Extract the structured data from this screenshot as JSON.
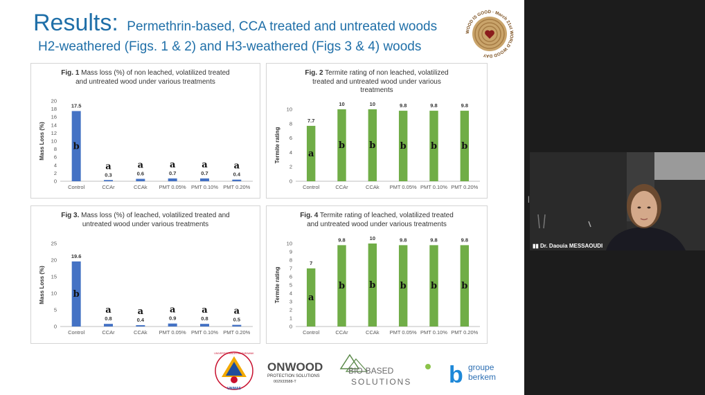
{
  "slide": {
    "title_big": "Results:",
    "title_sub1": "Permethrin-based, CCA treated and untreated woods",
    "title_sub2": "H2-weathered (Figs. 1 & 2) and H3-weathered (Figs 3 & 4) woods",
    "badge_text": "WOOD IS GOOD · March 21st WORLD WOOD DAY"
  },
  "chart_data": [
    {
      "type": "bar",
      "id": "fig1",
      "title_bold": "Fig. 1",
      "title_rest": " Mass loss (%) of non leached, volatilized treated",
      "title_line2": "and untreated wood under various treatments",
      "categories": [
        "Control",
        "CCAr",
        "CCAk",
        "PMT 0.05%",
        "PMT 0.10%",
        "PMT 0.20%"
      ],
      "values": [
        17.5,
        0.3,
        0.6,
        0.7,
        0.7,
        0.4
      ],
      "value_labels": [
        "17.5",
        "0.3",
        "0.6",
        "0.7",
        "0.7",
        "0.4"
      ],
      "letters": [
        "b",
        "a",
        "a",
        "a",
        "a",
        "a"
      ],
      "ylabel": "Mass Loss (%)",
      "ylim": [
        0,
        20
      ],
      "yticks": [
        0,
        2,
        4,
        6,
        8,
        10,
        12,
        14,
        16,
        18,
        20
      ],
      "color": "#4472c4"
    },
    {
      "type": "bar",
      "id": "fig2",
      "title_bold": "Fig. 2",
      "title_rest": " Termite rating of non leached, volatilized",
      "title_line2": "treated and untreated wood under various",
      "title_line3": "treatments",
      "categories": [
        "Control",
        "CCAr",
        "CCAk",
        "PMT 0.05%",
        "PMT 0.10%",
        "PMT 0.20%"
      ],
      "values": [
        7.7,
        10,
        10,
        9.8,
        9.8,
        9.8
      ],
      "value_labels": [
        "7.7",
        "10",
        "10",
        "9.8",
        "9.8",
        "9.8"
      ],
      "letters": [
        "a",
        "b",
        "b",
        "b",
        "b",
        "b"
      ],
      "ylabel": "Termite rating",
      "ylim": [
        0,
        10
      ],
      "yticks": [
        0,
        2,
        4,
        6,
        8,
        10
      ],
      "color": "#70ad47"
    },
    {
      "type": "bar",
      "id": "fig3",
      "title_bold": "Fig 3.",
      "title_rest": " Mass loss (%) of leached, volatilized treated and",
      "title_line2": "untreated wood under various treatments",
      "categories": [
        "Control",
        "CCAr",
        "CCAk",
        "PMT 0.05%",
        "PMT 0.10%",
        "PMT 0.20%"
      ],
      "values": [
        19.6,
        0.8,
        0.4,
        0.9,
        0.8,
        0.5
      ],
      "value_labels": [
        "19.6",
        "0.8",
        "0.4",
        "0.9",
        "0.8",
        "0.5"
      ],
      "letters": [
        "b",
        "a",
        "a",
        "a",
        "a",
        "a"
      ],
      "ylabel": "Mass Loss (%)",
      "ylim": [
        0,
        25
      ],
      "yticks": [
        0,
        5,
        10,
        15,
        20,
        25
      ],
      "color": "#4472c4"
    },
    {
      "type": "bar",
      "id": "fig4",
      "title_bold": "Fig. 4",
      "title_rest": " Termite rating of  leached, volatilized treated",
      "title_line2": "and untreated wood under various treatments",
      "categories": [
        "Control",
        "CCAr",
        "CCAk",
        "PMT 0.05%",
        "PMT 0.10%",
        "PMT 0.20%"
      ],
      "values": [
        7,
        9.8,
        10,
        9.8,
        9.8,
        9.8
      ],
      "value_labels": [
        "7",
        "9.8",
        "10",
        "9.8",
        "9.8",
        "9.8"
      ],
      "letters": [
        "a",
        "b",
        "b",
        "b",
        "b",
        "b"
      ],
      "ylabel": "Termite rating",
      "ylim": [
        0,
        10
      ],
      "yticks": [
        0,
        1,
        2,
        3,
        4,
        5,
        6,
        7,
        8,
        9,
        10
      ],
      "color": "#70ad47"
    }
  ],
  "footer": {
    "unimas_top": "UNIVERSITI MALAYSIA SARAWAK",
    "unimas_bottom": "UNIMAS",
    "onwood_name": "ONWOOD",
    "onwood_tag": "PROTECTION SOLUTIONS",
    "onwood_id": "002933588-T",
    "biobased_line1": "BIO-BASED",
    "biobased_line2": "SOLUTIONS",
    "berkem_b": "b",
    "berkem_line1": "groupe",
    "berkem_line2": "berkem"
  },
  "video": {
    "participant_name": "Dr. Daouia MESSAOUDI",
    "handle": "||"
  }
}
